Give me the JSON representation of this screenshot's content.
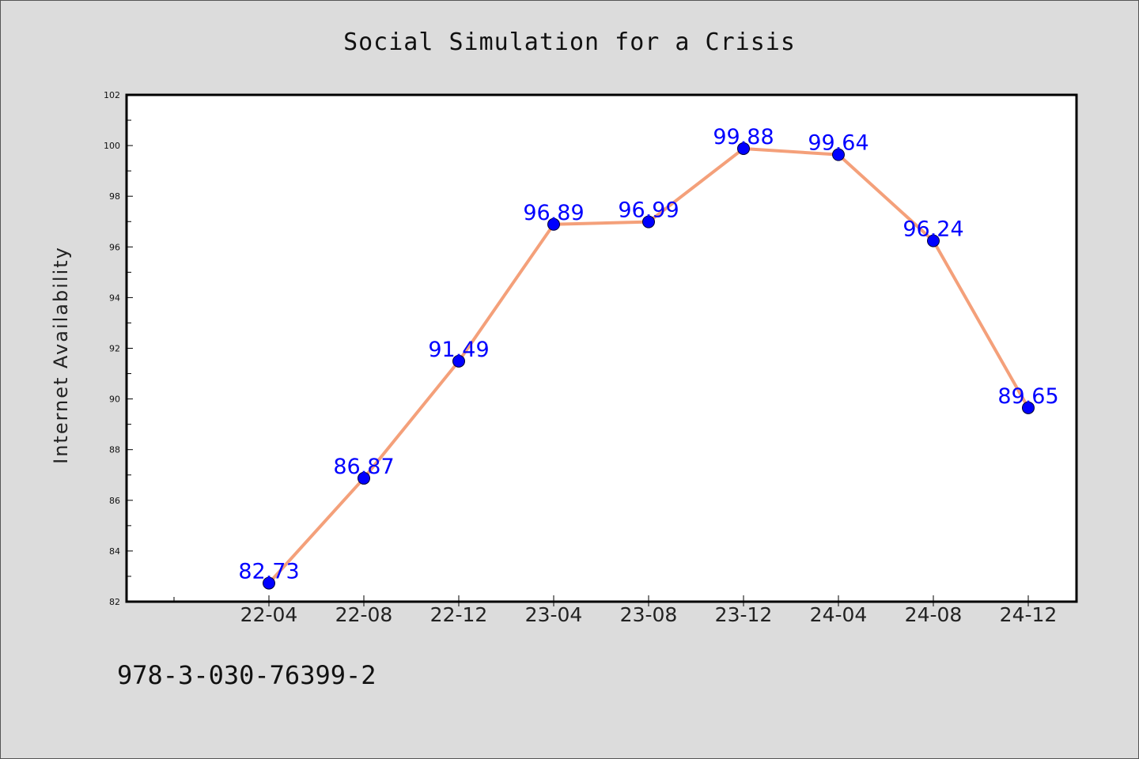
{
  "chart_data": {
    "type": "line",
    "title": "Social Simulation for a Crisis",
    "xlabel": "",
    "ylabel": "Internet Availability",
    "categories": [
      "22-04",
      "22-08",
      "22-12",
      "23-04",
      "23-08",
      "23-12",
      "24-04",
      "24-08",
      "24-12"
    ],
    "series": [
      {
        "values": [
          82.73,
          86.87,
          91.49,
          96.89,
          96.99,
          99.88,
          99.64,
          96.24,
          89.65
        ],
        "labels": [
          "82.73",
          "86.87",
          "91.49",
          "96.89",
          "96.99",
          "99.88",
          "99.64",
          "96.24",
          "89.65"
        ],
        "color": "#f4a07a",
        "marker_color": "#0000ff"
      }
    ],
    "ylim": [
      82,
      102
    ],
    "yticks": [
      82,
      84,
      86,
      88,
      90,
      92,
      94,
      96,
      98,
      100,
      102
    ],
    "ytick_labels": [
      "82",
      "84",
      "86",
      "88",
      "90",
      "92",
      "94",
      "96",
      "98",
      "100",
      "102"
    ],
    "grid": false,
    "legend": "none",
    "data_label_color": "#0000ff"
  },
  "footer": {
    "isbn": "978-3-030-76399-2"
  },
  "colors": {
    "background": "#dcdcdc",
    "plot_background": "#ffffff"
  }
}
